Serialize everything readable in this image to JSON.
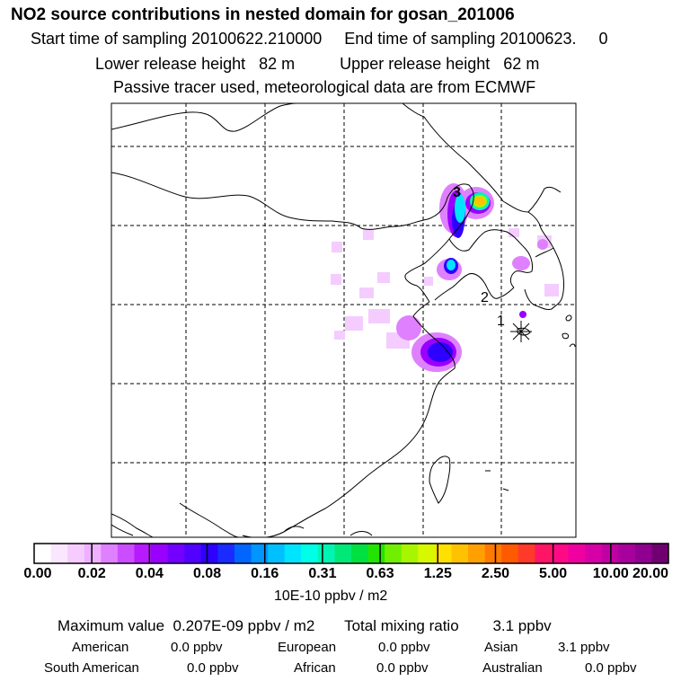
{
  "header": {
    "title": "NO2 source contributions in nested domain for gosan_201006",
    "start_label": "Start time of sampling",
    "start_value": "20100622.210000",
    "end_label": "End time of sampling",
    "end_value": "20100623.     0",
    "lower_label": "Lower release height",
    "lower_value": "82 m",
    "upper_label": "Upper release height",
    "upper_value": "62 m",
    "tracer_note": "Passive tracer used, meteorological data are from ECMWF"
  },
  "map": {
    "markers": [
      "3",
      "2",
      "1"
    ],
    "receptor_symbol": "asterisk"
  },
  "colorbar": {
    "tick_labels": [
      "0.00",
      "0.02",
      "0.04",
      "0.08",
      "0.16",
      "0.31",
      "0.63",
      "1.25",
      "2.50",
      "5.00",
      "10.00",
      "20.00"
    ],
    "units": "10E-10 ppbv / m2",
    "colors": [
      "#ffffff",
      "#fbe6ff",
      "#f6ccff",
      "#efb1ff",
      "#df80ff",
      "#cc4dff",
      "#b81aff",
      "#9900ff",
      "#7300ff",
      "#5200ff",
      "#2e00ff",
      "#1a2bff",
      "#0066ff",
      "#0095ff",
      "#00c0ff",
      "#00e5ff",
      "#00ffe8",
      "#00f5b4",
      "#00e878",
      "#00e040",
      "#22e400",
      "#70f000",
      "#a8f500",
      "#d8f800",
      "#ffe000",
      "#ffc200",
      "#ffa000",
      "#ff7a00",
      "#ff5a00",
      "#ff3a2a",
      "#ff1466",
      "#ff0a86",
      "#f000a0",
      "#d600a6",
      "#c000a2",
      "#a8009c",
      "#900090",
      "#700070"
    ]
  },
  "stats": {
    "max_label": "Maximum value",
    "max_value": "0.207E-09 ppbv / m2",
    "total_label": "Total mixing ratio",
    "total_value": "3.1 ppbv"
  },
  "regions": [
    {
      "name": "American",
      "value": "0.0 ppbv"
    },
    {
      "name": "European",
      "value": "0.0 ppbv"
    },
    {
      "name": "Asian",
      "value": "3.1 ppbv"
    },
    {
      "name": "South American",
      "value": "0.0 ppbv"
    },
    {
      "name": "African",
      "value": "0.0 ppbv"
    },
    {
      "name": "Australian",
      "value": "0.0 ppbv"
    }
  ]
}
